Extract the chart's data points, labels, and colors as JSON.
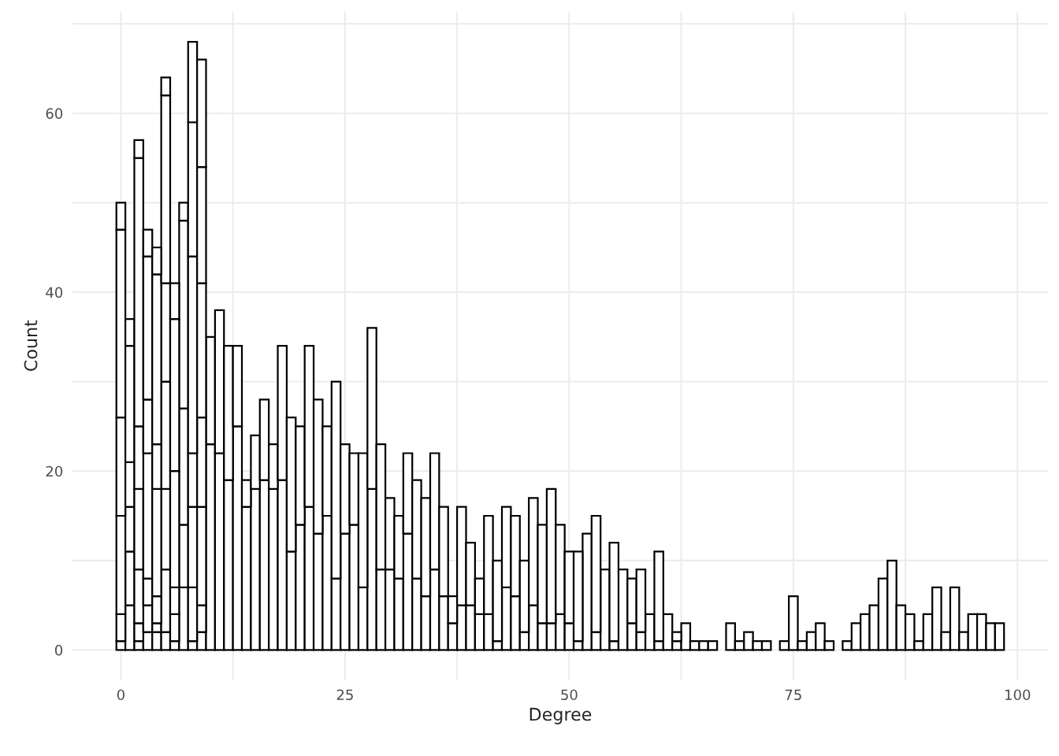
{
  "chart_data": {
    "type": "bar",
    "xlabel": "Degree",
    "ylabel": "Count",
    "stacked": true,
    "grid": true,
    "legend": false,
    "x": [
      0,
      1,
      2,
      3,
      4,
      5,
      6,
      7,
      8,
      9,
      10,
      11,
      12,
      13,
      14,
      15,
      16,
      17,
      18,
      19,
      20,
      21,
      22,
      23,
      24,
      25,
      26,
      27,
      28,
      29,
      30,
      31,
      32,
      33,
      34,
      35,
      36,
      37,
      38,
      39,
      40,
      41,
      42,
      43,
      44,
      45,
      46,
      47,
      48,
      49,
      50,
      51,
      52,
      53,
      54,
      55,
      56,
      57,
      58,
      59,
      60,
      61,
      62,
      63,
      64,
      65,
      66,
      67,
      68,
      69,
      70,
      71,
      72,
      73,
      74,
      75,
      76,
      77,
      78,
      79,
      80,
      81,
      82,
      83,
      84,
      85,
      86,
      87,
      88,
      89,
      90,
      91,
      92,
      93,
      94,
      95,
      96,
      97,
      98
    ],
    "series": [
      {
        "color": "#ffffff",
        "values": [
          1,
          5,
          1,
          2,
          2,
          2,
          1,
          7,
          1,
          2,
          23,
          22,
          19,
          25,
          16,
          18,
          19,
          18,
          19,
          11,
          14,
          16,
          13,
          15,
          8,
          13,
          14,
          7,
          18,
          9,
          9,
          8,
          13,
          8,
          6,
          9,
          6,
          3,
          5,
          5,
          4,
          4,
          1,
          7,
          6,
          2,
          5,
          3,
          3,
          4,
          3,
          1,
          13,
          2,
          9,
          1,
          9,
          3,
          2,
          4,
          1,
          4,
          1,
          3,
          1,
          1,
          1,
          null,
          3,
          1,
          2,
          1,
          1,
          null,
          1,
          6,
          1,
          2,
          3,
          1,
          null,
          1,
          3,
          4,
          5,
          8,
          10,
          5,
          4,
          1,
          4,
          7,
          2,
          7,
          2,
          4,
          4,
          3,
          3
        ]
      },
      {
        "color": "#ffffff",
        "values": [
          3,
          6,
          2,
          3,
          1,
          7,
          3,
          7,
          6,
          3,
          12,
          16,
          15,
          9,
          3,
          6,
          9,
          5,
          15,
          15,
          11,
          18,
          15,
          10,
          22,
          10,
          8,
          15,
          18,
          14,
          8,
          7,
          9,
          11,
          11,
          13,
          10,
          3,
          11,
          7,
          4,
          11,
          9,
          9,
          9,
          8,
          12,
          11,
          15,
          10,
          8,
          10,
          null,
          13,
          null,
          11,
          null,
          5,
          7,
          null,
          10,
          null,
          1,
          null,
          null,
          null,
          null,
          null,
          null,
          null,
          null,
          null,
          null,
          null,
          null,
          null,
          null,
          null,
          null,
          null,
          null,
          null,
          null,
          null,
          null,
          null,
          null,
          null,
          null,
          null,
          null,
          null,
          null,
          null,
          null,
          null,
          null,
          null,
          null
        ]
      },
      {
        "color": "#ffffff",
        "values": [
          11,
          5,
          6,
          3,
          3,
          9,
          3,
          13,
          9,
          11,
          null,
          null,
          null,
          null,
          null,
          null,
          null,
          null,
          null,
          null,
          null,
          null,
          null,
          null,
          null,
          null,
          null,
          null,
          null,
          null,
          null,
          null,
          null,
          null,
          null,
          null,
          null,
          null,
          null,
          null,
          null,
          null,
          null,
          null,
          null,
          null,
          null,
          null,
          null,
          null,
          null,
          null,
          null,
          null,
          null,
          null,
          null,
          null,
          null,
          null,
          null,
          null,
          null,
          null,
          null,
          null,
          null,
          null,
          null,
          null,
          null,
          null,
          null,
          null,
          null,
          null,
          null,
          null,
          null,
          null,
          null,
          null,
          null,
          null,
          null,
          null,
          null,
          null,
          null,
          null,
          null,
          null,
          null,
          null,
          null,
          null,
          null,
          null,
          null
        ]
      },
      {
        "color": "#ffffff",
        "values": [
          11,
          5,
          9,
          14,
          12,
          12,
          13,
          21,
          6,
          10,
          null,
          null,
          null,
          null,
          null,
          null,
          null,
          null,
          null,
          null,
          null,
          null,
          null,
          null,
          null,
          null,
          null,
          null,
          null,
          null,
          null,
          null,
          null,
          null,
          null,
          null,
          null,
          null,
          null,
          null,
          null,
          null,
          null,
          null,
          null,
          null,
          null,
          null,
          null,
          null,
          null,
          null,
          null,
          null,
          null,
          null,
          null,
          null,
          null,
          null,
          null,
          null,
          null,
          null,
          null,
          null,
          null,
          null,
          null,
          null,
          null,
          null,
          null,
          null,
          null,
          null,
          null,
          null,
          null,
          null,
          null,
          null,
          null,
          null,
          null,
          null,
          null,
          null,
          null,
          null,
          null,
          null,
          null,
          null,
          null,
          null,
          null,
          null,
          null
        ]
      },
      {
        "color": "#ffffff",
        "values": [
          21,
          13,
          7,
          6,
          5,
          11,
          17,
          2,
          22,
          15,
          null,
          null,
          null,
          null,
          null,
          null,
          null,
          null,
          null,
          null,
          null,
          null,
          null,
          null,
          null,
          null,
          null,
          null,
          null,
          null,
          null,
          null,
          null,
          null,
          null,
          null,
          null,
          null,
          null,
          null,
          null,
          null,
          null,
          null,
          null,
          null,
          null,
          null,
          null,
          null,
          null,
          null,
          null,
          null,
          null,
          null,
          null,
          null,
          null,
          null,
          null,
          null,
          null,
          null,
          null,
          null,
          null,
          null,
          null,
          null,
          null,
          null,
          null,
          null,
          null,
          null,
          null,
          null,
          null,
          null,
          null,
          null,
          null,
          null,
          null,
          null,
          null,
          null,
          null,
          null,
          null,
          null,
          null,
          null,
          null,
          null,
          null,
          null,
          null
        ]
      },
      {
        "color": "#ffffff",
        "values": [
          3,
          3,
          30,
          16,
          19,
          21,
          4,
          null,
          15,
          13,
          null,
          null,
          null,
          null,
          null,
          null,
          null,
          null,
          null,
          null,
          null,
          null,
          null,
          null,
          null,
          null,
          null,
          null,
          null,
          null,
          null,
          null,
          null,
          null,
          null,
          null,
          null,
          null,
          null,
          null,
          null,
          null,
          null,
          null,
          null,
          null,
          null,
          null,
          null,
          null,
          null,
          null,
          null,
          null,
          null,
          null,
          null,
          null,
          null,
          null,
          null,
          null,
          null,
          null,
          null,
          null,
          null,
          null,
          null,
          null,
          null,
          null,
          null,
          null,
          null,
          null,
          null,
          null,
          null,
          null,
          null,
          null,
          null,
          null,
          null,
          null,
          null,
          null,
          null,
          null,
          null,
          null,
          null,
          null,
          null,
          null,
          null,
          null,
          null
        ]
      },
      {
        "color": "#ffffff",
        "values": [
          null,
          null,
          2,
          3,
          3,
          2,
          null,
          null,
          9,
          12,
          null,
          null,
          null,
          null,
          null,
          null,
          null,
          null,
          null,
          null,
          null,
          null,
          null,
          null,
          null,
          null,
          null,
          null,
          null,
          null,
          null,
          null,
          null,
          null,
          null,
          null,
          null,
          null,
          null,
          null,
          null,
          null,
          null,
          null,
          null,
          null,
          null,
          null,
          null,
          null,
          null,
          null,
          null,
          null,
          null,
          null,
          null,
          null,
          null,
          null,
          null,
          null,
          null,
          null,
          null,
          null,
          null,
          null,
          null,
          null,
          null,
          null,
          null,
          null,
          null,
          null,
          null,
          null,
          null,
          null,
          null,
          null,
          null,
          null,
          null,
          null,
          null,
          null,
          null,
          null,
          null,
          null,
          null,
          null,
          null,
          null,
          null,
          null,
          null
        ]
      }
    ],
    "xlim": [
      -5.45,
      103.45
    ],
    "ylim": [
      -3.4,
      71.4
    ],
    "xticks": [
      0,
      {
        "value": 12.5,
        "label": null
      },
      25,
      {
        "value": 37.5,
        "label": null
      },
      50,
      {
        "value": 62.5,
        "label": null
      },
      75,
      {
        "value": 87.5,
        "label": null
      },
      100
    ],
    "yticks": [
      0,
      {
        "value": 10,
        "label": null
      },
      20,
      {
        "value": 30,
        "label": null
      },
      40,
      {
        "value": 50,
        "label": null
      },
      60,
      {
        "value": 70,
        "label": null
      }
    ]
  }
}
